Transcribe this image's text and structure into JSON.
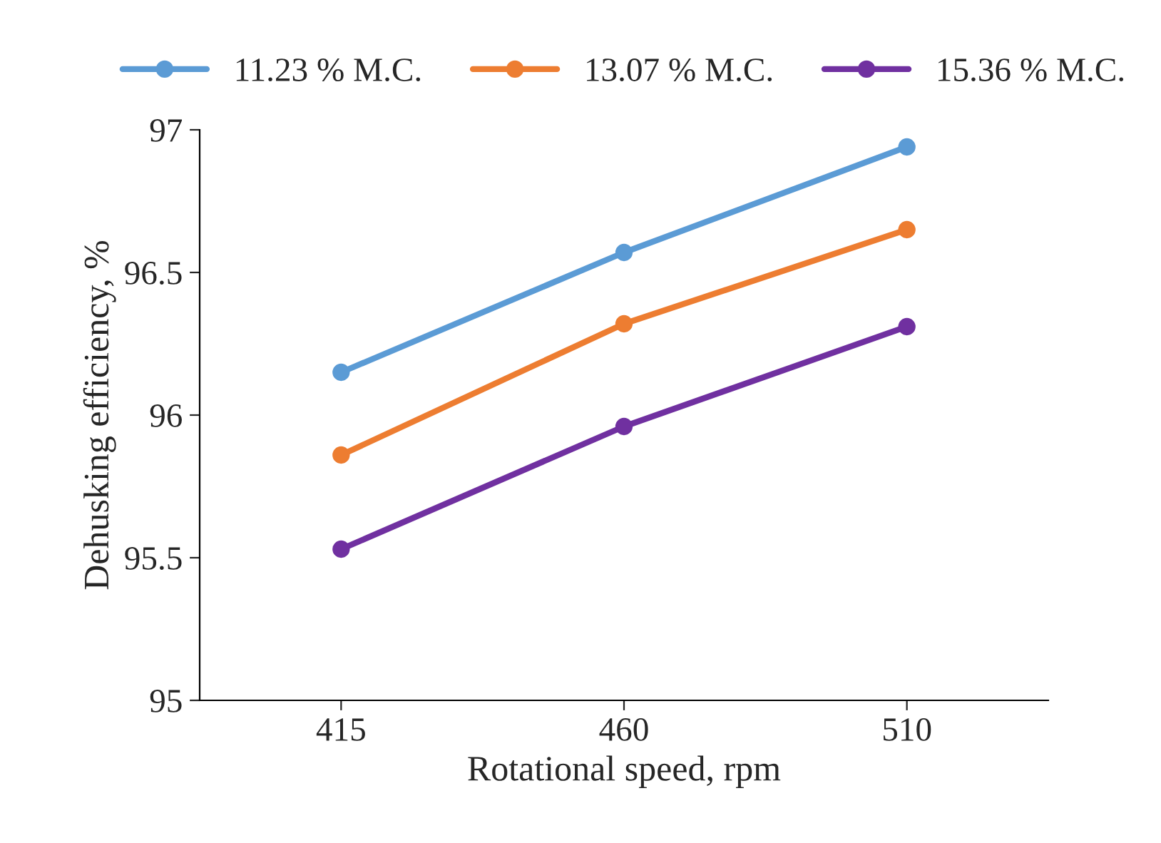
{
  "chart_data": {
    "type": "line",
    "xlabel": "Rotational speed, rpm",
    "ylabel": "Dehusking efficiency, %",
    "categories": [
      "415",
      "460",
      "510"
    ],
    "series": [
      {
        "name": "11.23 % M.C.",
        "color": "#5b9bd5",
        "values": [
          96.15,
          96.57,
          96.94
        ]
      },
      {
        "name": "13.07 % M.C.",
        "color": "#ed7d31",
        "values": [
          95.86,
          96.32,
          96.65
        ]
      },
      {
        "name": "15.36 % M.C.",
        "color": "#7030a0",
        "values": [
          95.53,
          95.96,
          96.31
        ]
      }
    ],
    "ylim": [
      95,
      97
    ],
    "yticks": [
      95,
      95.5,
      96,
      96.5,
      97
    ],
    "grid": false,
    "legend": "top",
    "marker": "circle",
    "line_style": "solid"
  }
}
